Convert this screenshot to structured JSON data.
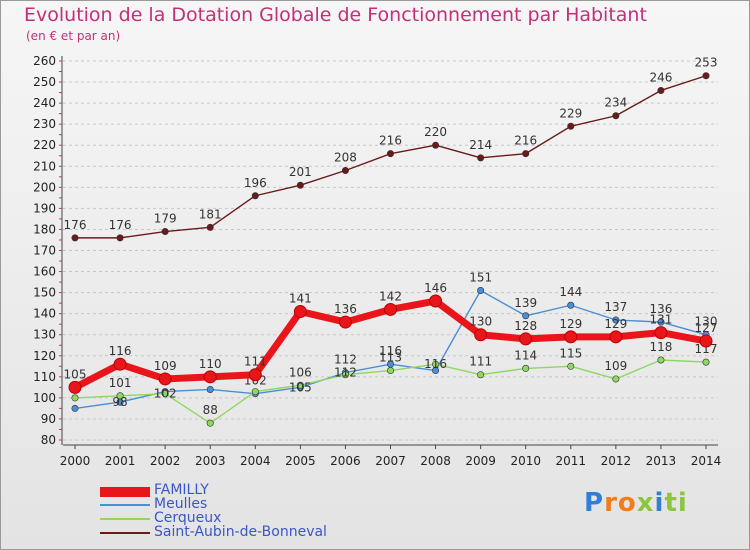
{
  "header": {
    "title": "Evolution de la Dotation Globale de Fonctionnement par Habitant",
    "subtitle": "(en € et par an)"
  },
  "colors": {
    "title": "#c3307a",
    "legend_text": "#3a56c8",
    "axis_text": "#222222"
  },
  "logo": {
    "text": "Proxiti",
    "colors": [
      "#2f7fd6",
      "#f07c1a",
      "#8cc63f"
    ]
  },
  "chart_data": {
    "type": "line",
    "title": "Evolution de la Dotation Globale de Fonctionnement par Habitant",
    "subtitle": "(en € et par an)",
    "xlabel": "",
    "ylabel": "",
    "x": [
      "2000",
      "2001",
      "2002",
      "2003",
      "2004",
      "2005",
      "2006",
      "2007",
      "2008",
      "2009",
      "2010",
      "2011",
      "2012",
      "2013",
      "2014"
    ],
    "yticks": [
      80,
      90,
      100,
      110,
      120,
      130,
      140,
      150,
      160,
      170,
      180,
      190,
      200,
      210,
      220,
      230,
      240,
      250,
      260
    ],
    "ylim": [
      80,
      260
    ],
    "grid": "horizontal dashed",
    "legend_position": "bottom-left",
    "series": [
      {
        "name": "Saint-Aubin-de-Bonneval",
        "color": "#6b1a1a",
        "values": [
          176,
          176,
          179,
          181,
          196,
          201,
          208,
          216,
          220,
          214,
          216,
          229,
          234,
          246,
          253
        ],
        "labels": [
          "176",
          "176",
          "179",
          "181",
          "196",
          "201",
          "208",
          "216",
          "220",
          "214",
          "216",
          "229",
          "234",
          "246",
          "253"
        ]
      },
      {
        "name": "Meulles",
        "color": "#4a8fd6",
        "values": [
          95,
          98,
          103,
          104,
          102,
          105,
          112,
          116,
          113,
          151,
          139,
          144,
          137,
          136,
          130
        ],
        "labels": [
          "",
          "",
          "",
          "",
          "102",
          "",
          "112",
          "116",
          "",
          "151",
          "139",
          "144",
          "137",
          "136",
          "130"
        ]
      },
      {
        "name": "Cerqueux",
        "color": "#8fd860",
        "values": [
          100,
          101,
          102,
          88,
          103,
          106,
          111,
          113,
          116,
          111,
          114,
          115,
          109,
          118,
          117
        ],
        "labels": [
          "",
          "101",
          "",
          "88",
          "",
          "106",
          "",
          "113",
          "",
          "111",
          "114",
          "115",
          "109",
          "118",
          "117"
        ]
      },
      {
        "name": "FAMILLY",
        "color": "#e8161b",
        "values": [
          105,
          116,
          109,
          110,
          111,
          141,
          136,
          142,
          146,
          130,
          128,
          129,
          129,
          131,
          127
        ],
        "labels": [
          "105",
          "116",
          "109",
          "110",
          "111",
          "141",
          "136",
          "142",
          "146",
          "130",
          "128",
          "129",
          "129",
          "131",
          "127"
        ],
        "extra_labels": [
          "",
          "98",
          "102",
          "",
          "",
          "105",
          "112",
          "",
          "116",
          "",
          "",
          "",
          "",
          "",
          ""
        ]
      }
    ]
  },
  "legend": {
    "items": [
      {
        "label": "FAMILLY",
        "color": "#e8161b",
        "thick": true
      },
      {
        "label": "Meulles",
        "color": "#4a8fd6",
        "thick": false
      },
      {
        "label": "Cerqueux",
        "color": "#8fd860",
        "thick": false
      },
      {
        "label": "Saint-Aubin-de-Bonneval",
        "color": "#6b1a1a",
        "thick": false
      }
    ]
  }
}
